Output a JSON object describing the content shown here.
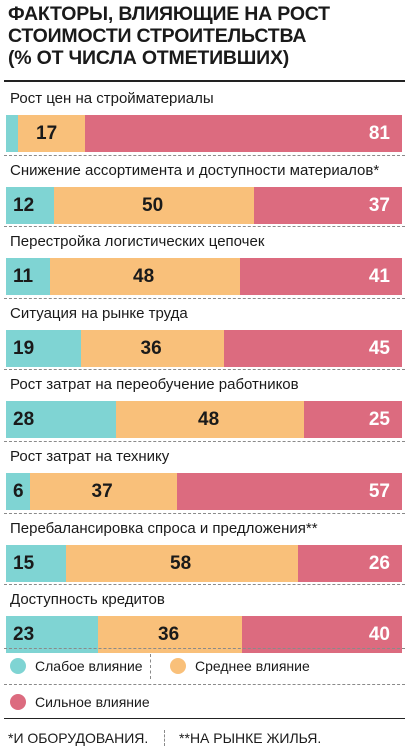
{
  "title_lines": [
    "ФАКТОРЫ, ВЛИЯЮЩИЕ НА РОСТ",
    "СТОИМОСТИ СТРОИТЕЛЬСТВА",
    "(% ОТ ЧИСЛА ОТМЕТИВШИХ)"
  ],
  "colors": {
    "weak": "#7fd4d3",
    "medium": "#f9c07a",
    "strong": "#dc6b7f"
  },
  "legend": {
    "weak": "Слабое влияние",
    "medium": "Среднее влияние",
    "strong": "Сильное влияние"
  },
  "footnotes": [
    "*И ОБОРУДОВАНИЯ.",
    "**НА РЫНКЕ ЖИЛЬЯ."
  ],
  "chart_data": {
    "type": "bar",
    "stacked": true,
    "orientation": "horizontal",
    "title": "ФАКТОРЫ, ВЛИЯЮЩИЕ НА РОСТ СТОИМОСТИ СТРОИТЕЛЬСТВА (% ОТ ЧИСЛА ОТМЕТИВШИХ)",
    "categories": [
      "Рост цен на стройматериалы",
      "Снижение ассортимента и доступности материалов*",
      "Перестройка логистических цепочек",
      "Ситуация на рынке труда",
      "Рост затрат на переобучение работников",
      "Рост затрат на технику",
      "Перебалансировка спроса и предложения**",
      "Доступность кредитов"
    ],
    "series": [
      {
        "name": "Слабое влияние",
        "values": [
          3,
          12,
          11,
          19,
          28,
          6,
          15,
          23
        ]
      },
      {
        "name": "Среднее влияние",
        "values": [
          17,
          50,
          48,
          36,
          48,
          37,
          58,
          36
        ]
      },
      {
        "name": "Сильное влияние",
        "values": [
          81,
          37,
          41,
          45,
          25,
          57,
          26,
          40
        ]
      }
    ]
  }
}
